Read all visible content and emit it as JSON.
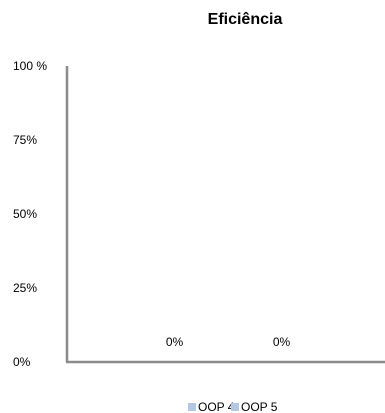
{
  "chart_data": {
    "type": "bar",
    "title": "Eficiência",
    "xlabel": "",
    "ylabel": "",
    "categories": [
      "OOP 4",
      "OOP 5"
    ],
    "values": [
      0,
      0
    ],
    "data_labels": [
      "0%",
      "0%"
    ],
    "y_ticks": [
      {
        "value": 0,
        "label": "0%"
      },
      {
        "value": 25,
        "label": "25%"
      },
      {
        "value": 50,
        "label": "50%"
      },
      {
        "value": 75,
        "label": "75%"
      },
      {
        "value": 100,
        "label": "100 %"
      }
    ],
    "ylim": [
      0,
      100
    ],
    "grid": false,
    "legend": {
      "position": "bottom",
      "entries": [
        {
          "name": "OOP 4",
          "color": "#b4c8e4"
        },
        {
          "name": "OOP 5",
          "color": "#b4c8e4"
        }
      ]
    },
    "colors": {
      "axis": "#8c8c8c",
      "bar": "#b4c8e4"
    }
  }
}
